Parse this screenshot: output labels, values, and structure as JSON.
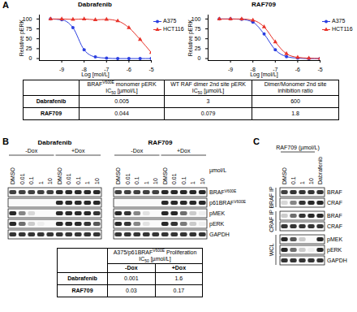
{
  "chart_data": [
    {
      "type": "line",
      "title": "Dabrafenib",
      "x_label": "Log [mol/L]",
      "y_label": "Relative pERK",
      "x": [
        -9.5,
        -9,
        -8.5,
        -8,
        -7.5,
        -7,
        -6.5,
        -6,
        -5.5,
        -5
      ],
      "series": [
        {
          "name": "A375",
          "color": "#2b3fe0",
          "marker": "circle",
          "values": [
            100,
            98,
            78,
            22,
            4,
            1,
            0,
            0,
            0,
            0
          ]
        },
        {
          "name": "HCT116",
          "color": "#e8332a",
          "marker": "triangle",
          "values": [
            100,
            100,
            99,
            100,
            98,
            99,
            95,
            78,
            48,
            15
          ]
        }
      ],
      "xlim": [
        -10,
        -5
      ],
      "xticks": [
        -9,
        -8,
        -7,
        -6,
        -5
      ],
      "ylim": [
        -5,
        110
      ],
      "yticks": [
        0,
        25,
        50,
        75,
        100
      ],
      "legend": "right"
    },
    {
      "type": "line",
      "title": "RAF709",
      "x_label": "Log [mol/L]",
      "y_label": "Relative pERK",
      "x": [
        -9.5,
        -9,
        -8.5,
        -8,
        -7.5,
        -7,
        -6.5,
        -6,
        -5.5,
        -5
      ],
      "series": [
        {
          "name": "A375",
          "color": "#2b3fe0",
          "marker": "circle",
          "values": [
            100,
            100,
            99,
            92,
            62,
            22,
            5,
            1,
            0,
            0
          ]
        },
        {
          "name": "HCT116",
          "color": "#e8332a",
          "marker": "triangle",
          "values": [
            100,
            100,
            100,
            97,
            80,
            42,
            12,
            3,
            1,
            0
          ]
        }
      ],
      "xlim": [
        -10,
        -5
      ],
      "xticks": [
        -9,
        -8,
        -7,
        -6,
        -5
      ],
      "ylim": [
        -5,
        110
      ],
      "yticks": [
        0,
        25,
        50,
        75,
        100
      ],
      "legend": "right"
    }
  ],
  "panels": {
    "A": {
      "label": "A",
      "table": {
        "columns": [
          "BRAFV600E monomer pERK IC50 [µmol/L]",
          "WT RAF dimer 2nd site pERK IC50 [µmol/L]",
          "Dimer/Monomer 2nd site inhibition ratio"
        ],
        "rows": [
          [
            "Dabrafenib",
            0.005,
            3,
            600
          ],
          [
            "RAF709",
            0.044,
            0.079,
            1.8
          ]
        ]
      }
    },
    "B": {
      "label": "B",
      "unit": "µmol/L",
      "row_labels": [
        "BRAFV600E",
        "p61BRAFV600E",
        "pMEK",
        "pERK",
        "GAPDH"
      ],
      "blots": [
        {
          "title": "Dabrafenib",
          "lane_groups": [
            {
              "title": "-Dox",
              "lanes": [
                "DMSO",
                "0.01",
                "0.1",
                "1",
                "10"
              ]
            },
            {
              "title": "+Dox",
              "lanes": [
                "DMSO",
                "0.01",
                "0.1",
                "1",
                "10"
              ]
            }
          ],
          "bands": [
            [
              0.8,
              0.8,
              0.8,
              0.8,
              0.8,
              0.9,
              0.9,
              0.9,
              0.9,
              0.9
            ],
            [
              0,
              0,
              0,
              0,
              0,
              0.9,
              0.9,
              0.9,
              0.9,
              0.9
            ],
            [
              0.9,
              0.5,
              0.15,
              0,
              0,
              0.9,
              0.9,
              0.9,
              0.9,
              0.85
            ],
            [
              0.9,
              0.6,
              0.2,
              0.05,
              0,
              0.9,
              0.9,
              0.9,
              0.85,
              0.7
            ],
            [
              0.85,
              0.85,
              0.85,
              0.85,
              0.85,
              0.85,
              0.85,
              0.85,
              0.85,
              0.85
            ]
          ]
        },
        {
          "title": "RAF709",
          "lane_groups": [
            {
              "title": "-Dox",
              "lanes": [
                "DMSO",
                "0.01",
                "0.1",
                "1",
                "10"
              ]
            },
            {
              "title": "+Dox",
              "lanes": [
                "DMSO",
                "0.01",
                "0.1",
                "1",
                "10"
              ]
            }
          ],
          "bands": [
            [
              0.8,
              0.8,
              0.8,
              0.8,
              0.8,
              0.9,
              0.9,
              0.9,
              0.9,
              0.9
            ],
            [
              0,
              0,
              0,
              0,
              0,
              0.9,
              0.9,
              0.9,
              0.9,
              0.9
            ],
            [
              0.9,
              0.85,
              0.5,
              0.1,
              0,
              0.9,
              0.9,
              0.6,
              0.2,
              0.05
            ],
            [
              0.9,
              0.85,
              0.5,
              0.1,
              0,
              0.9,
              0.85,
              0.55,
              0.2,
              0.05
            ],
            [
              0.85,
              0.85,
              0.85,
              0.85,
              0.85,
              0.85,
              0.85,
              0.85,
              0.85,
              0.85
            ]
          ]
        }
      ],
      "table": {
        "title": "A375/p61BRAFV600E Proliferation IC50 [µmol/L]",
        "columns": [
          "-Dox",
          "+Dox"
        ],
        "rows": [
          [
            "Dabrafenib",
            0.001,
            1.6
          ],
          [
            "RAF709",
            0.03,
            0.17
          ]
        ]
      }
    },
    "C": {
      "label": "C",
      "lane_groups": [
        {
          "title": "RAF709 (µmol/L)",
          "lanes": [
            "DMSO",
            "0.1",
            "1",
            "10"
          ]
        },
        {
          "lanes": [
            "Dabrafenib"
          ]
        }
      ],
      "groups": [
        {
          "name": "BRAF IP",
          "rows": [
            {
              "name": "BRAF",
              "bands": [
                0.8,
                0.85,
                0.85,
                0.85,
                0.85
              ]
            },
            {
              "name": "CRAF",
              "bands": [
                0.15,
                0.5,
                0.85,
                0.9,
                0.9
              ]
            }
          ]
        },
        {
          "name": "CRAF IP",
          "rows": [
            {
              "name": "BRAF",
              "bands": [
                0.2,
                0.6,
                0.85,
                0.9,
                0.9
              ]
            },
            {
              "name": "CRAF",
              "bands": [
                0.85,
                0.85,
                0.85,
                0.85,
                0.85
              ]
            }
          ]
        },
        {
          "name": "WCL",
          "rows": [
            {
              "name": "pMEK",
              "bands": [
                0.9,
                0.7,
                0.2,
                0,
                0.9
              ]
            },
            {
              "name": "pERK",
              "bands": [
                0.9,
                0.6,
                0.2,
                0.05,
                0.9
              ]
            },
            {
              "name": "GAPDH",
              "bands": [
                0.85,
                0.85,
                0.85,
                0.85,
                0.85
              ]
            }
          ]
        }
      ]
    }
  }
}
